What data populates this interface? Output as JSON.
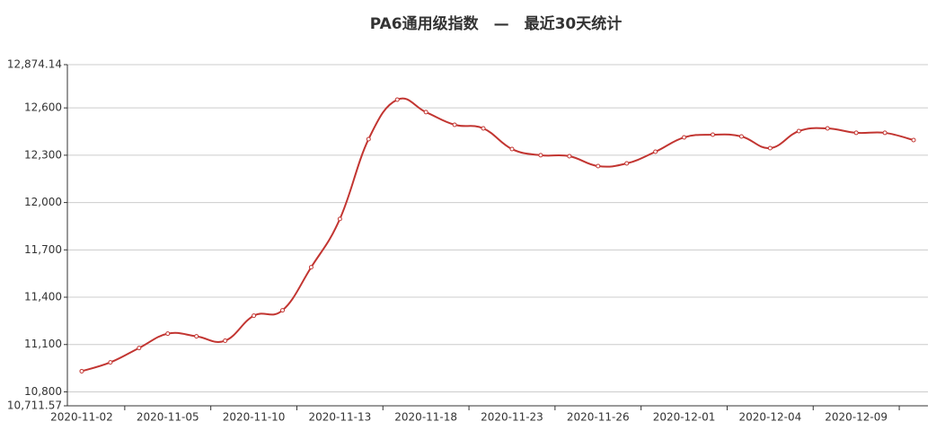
{
  "chart_data": {
    "type": "line",
    "title": "PA6通用级指数　—　最近30天统计",
    "categories": [
      "2020-11-02",
      null,
      null,
      "2020-11-05",
      null,
      null,
      "2020-11-10",
      null,
      null,
      "2020-11-13",
      null,
      null,
      "2020-11-18",
      null,
      null,
      "2020-11-23",
      null,
      null,
      "2020-11-26",
      null,
      null,
      "2020-12-01",
      null,
      null,
      "2020-12-04",
      null,
      null,
      "2020-12-09",
      null,
      null
    ],
    "series": [
      {
        "color": "#c23531",
        "values": [
          10931,
          10987,
          11078,
          11169,
          11152,
          11124,
          11283,
          11317,
          11590,
          11896,
          12402,
          12652,
          12573,
          12493,
          12470,
          12339,
          12300,
          12294,
          12231,
          12248,
          12322,
          12413,
          12430,
          12419,
          12345,
          12453,
          12470,
          12442,
          12442,
          12396
        ]
      }
    ],
    "ylim": [
      10711.57,
      12874.14
    ],
    "yticks": [
      {
        "value": 10711.57,
        "label": "10,711.57"
      },
      {
        "value": 10800,
        "label": "10,800"
      },
      {
        "value": 11100,
        "label": "11,100"
      },
      {
        "value": 11400,
        "label": "11,400"
      },
      {
        "value": 11700,
        "label": "11,700"
      },
      {
        "value": 12000,
        "label": "12,000"
      },
      {
        "value": 12300,
        "label": "12,300"
      },
      {
        "value": 12600,
        "label": "12,600"
      },
      {
        "value": 12874.14,
        "label": "12,874.14"
      }
    ],
    "grid": true
  }
}
